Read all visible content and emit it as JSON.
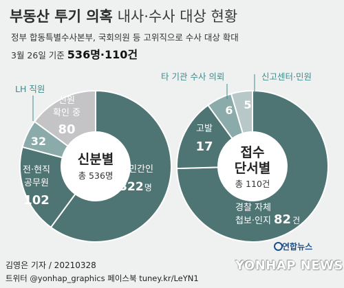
{
  "title": {
    "bold": "부동산 투기 의혹",
    "light": "내사·수사 대상 현황"
  },
  "subtitle": "정부 합동특별수사본부, 국회의원 등 고위직으로 수사 대상 확대",
  "date_line": {
    "prefix": "3월 26일 기준",
    "totals": "536명·110건"
  },
  "colors": {
    "dark": "#4e7473",
    "mid": "#8aabaa",
    "light": "#b8c8c9",
    "gray": "#c4c4c6",
    "accent_text": "#3f8a8c"
  },
  "chart_data": [
    {
      "type": "pie",
      "center_label": [
        "신분별"
      ],
      "center_total": "총 536명",
      "slices": [
        {
          "label": "민간인",
          "value": 322,
          "unit": "명"
        },
        {
          "label": "전·현직 공무원",
          "value": 102
        },
        {
          "label": "LH 직원",
          "value": 32
        },
        {
          "label": "신원 확인 중",
          "value": 80
        }
      ]
    },
    {
      "type": "pie",
      "center_label": [
        "접수",
        "단서별"
      ],
      "center_total": "총 110건",
      "slices": [
        {
          "label": "경찰 자체 첩보·인지",
          "value": 82,
          "unit": "건"
        },
        {
          "label": "고발",
          "value": 17
        },
        {
          "label": "타 기관 수사 의뢰",
          "value": 6
        },
        {
          "label": "신고센터·민원",
          "value": 5
        }
      ]
    }
  ],
  "text": {
    "minganin": "민간인",
    "minganin_val": "322",
    "minganin_unit": "명",
    "jeon": "전·현직",
    "gongmuwon": "공무원",
    "gongmuwon_val": "102",
    "lh_val": "32",
    "lh_label": "LH 직원",
    "sinwon1": "신원",
    "sinwon2": "확인 중",
    "sinwon_val": "80",
    "left_center": "신분별",
    "left_total": "총 536명",
    "right_center1": "접수",
    "right_center2": "단서별",
    "right_total": "총 110건",
    "police1": "경찰 자체",
    "police2": "첩보·인지",
    "police_val": "82",
    "police_unit": "건",
    "gobal": "고발",
    "gobal_val": "17",
    "tagigwan_label": "타 기관 수사 의뢰",
    "tagigwan_val": "6",
    "singo_label": "신고센터·민원",
    "singo_val": "5"
  },
  "footer": {
    "credit": "김영은 기자 / 20210328",
    "social": "트위터 @yonhap_graphics  페이스북 tuney.kr/LeYN1"
  },
  "logo": {
    "kr": "연합뉴스",
    "en": "YONHAP NEWS"
  }
}
